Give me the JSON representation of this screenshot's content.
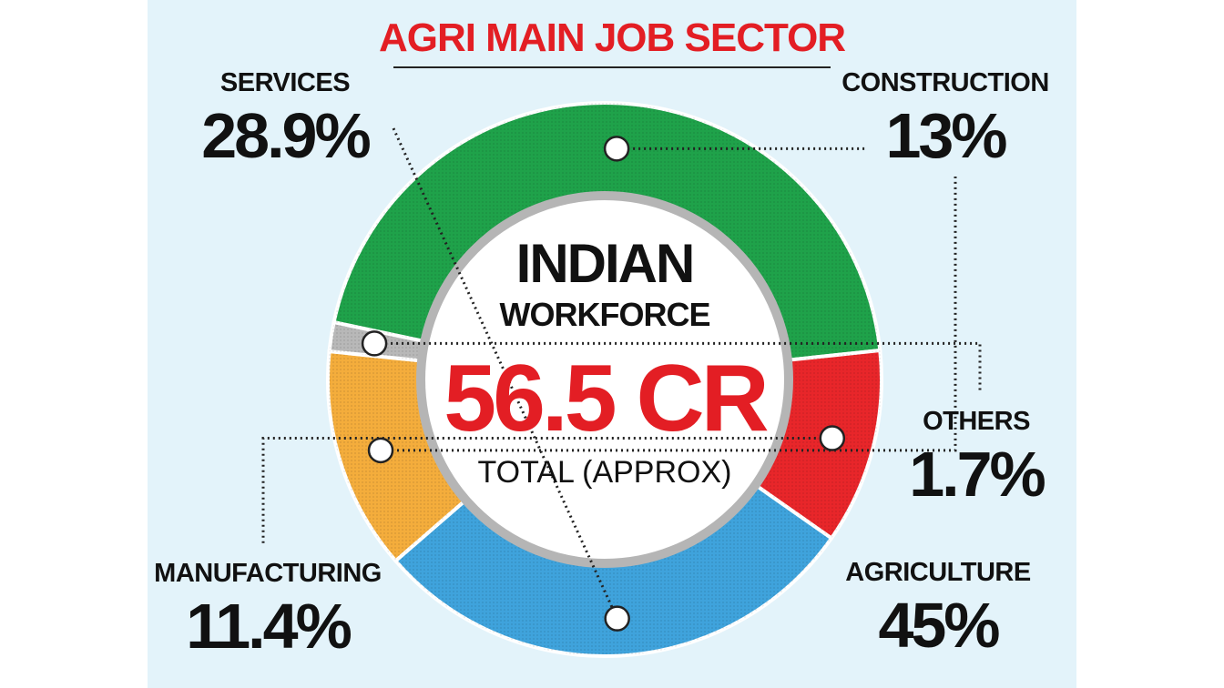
{
  "title": "AGRI MAIN JOB SECTOR",
  "center": {
    "line1": "INDIAN",
    "line2": "WORKFORCE",
    "value": "56.5 CR",
    "note": "TOTAL (APPROX)"
  },
  "chart_data": {
    "type": "pie",
    "title": "AGRI MAIN JOB SECTOR",
    "categories": [
      "SERVICES",
      "CONSTRUCTION",
      "OTHERS",
      "AGRICULTURE",
      "MANUFACTURING"
    ],
    "values": [
      28.9,
      13,
      1.7,
      45,
      11.4
    ],
    "labels": [
      "28.9%",
      "13%",
      "1.7%",
      "45%",
      "11.4%"
    ],
    "colors": [
      "#3fa3dc",
      "#f4ad3c",
      "#b8b8b8",
      "#1fa24a",
      "#e8262a"
    ],
    "donut": true
  }
}
